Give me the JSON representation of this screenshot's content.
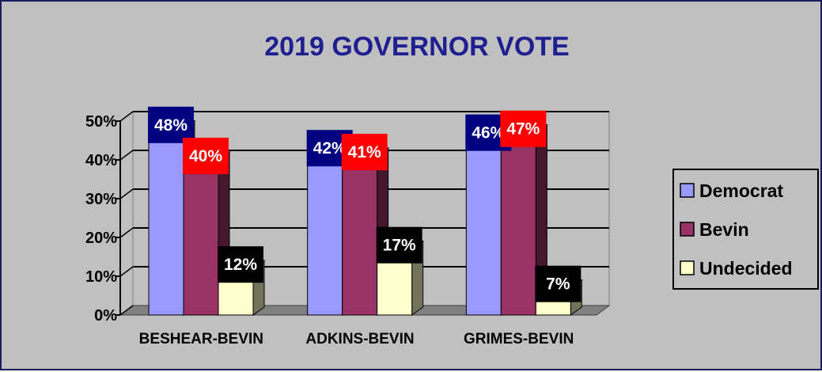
{
  "chart_data": {
    "type": "bar",
    "title": "2019 GOVERNOR VOTE",
    "categories": [
      "BESHEAR-BEVIN",
      "ADKINS-BEVIN",
      "GRIMES-BEVIN"
    ],
    "series": [
      {
        "name": "Democrat",
        "values": [
          48,
          42,
          46
        ],
        "data_labels": [
          "48%",
          "42%",
          "46%"
        ],
        "color": "#9999ff",
        "label_bg": "#000080"
      },
      {
        "name": "Bevin",
        "values": [
          40,
          41,
          47
        ],
        "data_labels": [
          "40%",
          "41%",
          "47%"
        ],
        "color": "#993366",
        "label_bg": "#ff0000"
      },
      {
        "name": "Undecided",
        "values": [
          12,
          17,
          7
        ],
        "data_labels": [
          "12%",
          "17%",
          "7%"
        ],
        "color": "#ffffcc",
        "label_bg": "#000000"
      }
    ],
    "ylim": [
      0,
      50
    ],
    "yticks": [
      0,
      10,
      20,
      30,
      40,
      50
    ],
    "ytick_labels": [
      "0%",
      "10%",
      "20%",
      "30%",
      "40%",
      "50%"
    ],
    "grid": true,
    "legend": "right",
    "title_color": "#1f1f8f",
    "background": "#c0c0c0"
  }
}
